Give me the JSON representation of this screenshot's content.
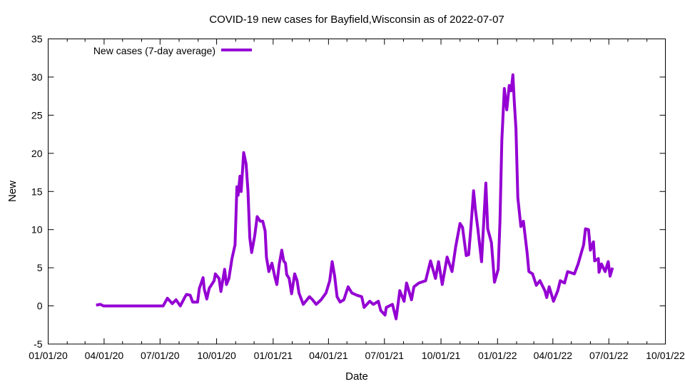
{
  "chart_data": {
    "type": "line",
    "title": "COVID-19 new cases for Bayfield,Wisconsin as of 2022-07-07",
    "xlabel": "Date",
    "ylabel": "New",
    "x_unit": "days since 01/01/20",
    "xlim": [
      0,
      1004
    ],
    "ylim": [
      -5,
      35
    ],
    "yticks": [
      -5,
      0,
      5,
      10,
      15,
      20,
      25,
      30,
      35
    ],
    "xticks": [
      {
        "day": 0,
        "label": "01/01/20"
      },
      {
        "day": 91,
        "label": "04/01/20"
      },
      {
        "day": 182,
        "label": "07/01/20"
      },
      {
        "day": 274,
        "label": "10/01/20"
      },
      {
        "day": 366,
        "label": "01/01/21"
      },
      {
        "day": 456,
        "label": "04/01/21"
      },
      {
        "day": 547,
        "label": "07/01/21"
      },
      {
        "day": 639,
        "label": "10/01/21"
      },
      {
        "day": 731,
        "label": "01/01/22"
      },
      {
        "day": 821,
        "label": "04/01/22"
      },
      {
        "day": 912,
        "label": "07/01/22"
      },
      {
        "day": 1004,
        "label": "10/01/22"
      }
    ],
    "grid": false,
    "legend": {
      "position": "top-left",
      "label": "New cases (7-day average)"
    },
    "color": "#9400d3",
    "series": [
      {
        "name": "New cases (7-day average)",
        "points": [
          [
            78,
            0.1
          ],
          [
            85,
            0.2
          ],
          [
            90,
            0
          ],
          [
            187,
            0
          ],
          [
            194,
            1.0
          ],
          [
            202,
            0.3
          ],
          [
            208,
            0.8
          ],
          [
            215,
            0
          ],
          [
            222,
            1.1
          ],
          [
            225,
            1.5
          ],
          [
            231,
            1.4
          ],
          [
            235,
            0.5
          ],
          [
            243,
            0.5
          ],
          [
            246,
            2.3
          ],
          [
            252,
            3.7
          ],
          [
            254,
            2.2
          ],
          [
            258,
            0.9
          ],
          [
            262,
            2.3
          ],
          [
            270,
            3.3
          ],
          [
            272,
            4.2
          ],
          [
            278,
            3.6
          ],
          [
            281,
            1.9
          ],
          [
            287,
            4.8
          ],
          [
            290,
            2.8
          ],
          [
            294,
            3.6
          ],
          [
            299,
            6.2
          ],
          [
            304,
            8.0
          ],
          [
            307,
            15.6
          ],
          [
            309,
            14.5
          ],
          [
            312,
            17.0
          ],
          [
            314,
            15.0
          ],
          [
            318,
            20.1
          ],
          [
            322,
            18.6
          ],
          [
            325,
            15.1
          ],
          [
            328,
            8.9
          ],
          [
            331,
            7.0
          ],
          [
            336,
            9.2
          ],
          [
            340,
            11.7
          ],
          [
            345,
            11.1
          ],
          [
            349,
            11.1
          ],
          [
            353,
            9.8
          ],
          [
            355,
            6.4
          ],
          [
            359,
            4.5
          ],
          [
            364,
            5.6
          ],
          [
            369,
            3.7
          ],
          [
            372,
            2.8
          ],
          [
            376,
            5.5
          ],
          [
            380,
            7.3
          ],
          [
            383,
            5.9
          ],
          [
            386,
            5.6
          ],
          [
            388,
            4.1
          ],
          [
            392,
            3.6
          ],
          [
            396,
            1.6
          ],
          [
            401,
            4.2
          ],
          [
            405,
            3.3
          ],
          [
            408,
            1.7
          ],
          [
            415,
            0.2
          ],
          [
            421,
            0.8
          ],
          [
            425,
            1.2
          ],
          [
            430,
            0.8
          ],
          [
            436,
            0.2
          ],
          [
            444,
            0.8
          ],
          [
            452,
            1.7
          ],
          [
            458,
            3.3
          ],
          [
            462,
            5.8
          ],
          [
            466,
            3.9
          ],
          [
            470,
            1.2
          ],
          [
            475,
            0.5
          ],
          [
            481,
            0.8
          ],
          [
            488,
            2.5
          ],
          [
            494,
            1.7
          ],
          [
            502,
            1.4
          ],
          [
            510,
            1.2
          ],
          [
            514,
            -0.2
          ],
          [
            523,
            0.6
          ],
          [
            529,
            0.2
          ],
          [
            537,
            0.6
          ],
          [
            541,
            -0.6
          ],
          [
            548,
            -1.2
          ],
          [
            550,
            -0.2
          ],
          [
            560,
            0.2
          ],
          [
            566,
            -1.7
          ],
          [
            572,
            2.0
          ],
          [
            579,
            0.6
          ],
          [
            583,
            3.0
          ],
          [
            591,
            0.8
          ],
          [
            595,
            2.5
          ],
          [
            603,
            3.0
          ],
          [
            614,
            3.3
          ],
          [
            622,
            5.9
          ],
          [
            630,
            3.6
          ],
          [
            635,
            5.8
          ],
          [
            641,
            2.8
          ],
          [
            649,
            6.4
          ],
          [
            657,
            4.5
          ],
          [
            663,
            7.8
          ],
          [
            670,
            10.8
          ],
          [
            674,
            10.3
          ],
          [
            680,
            6.6
          ],
          [
            684,
            6.7
          ],
          [
            688,
            10.6
          ],
          [
            692,
            15.1
          ],
          [
            695,
            12.6
          ],
          [
            699,
            10.1
          ],
          [
            705,
            5.8
          ],
          [
            712,
            16.1
          ],
          [
            715,
            10.1
          ],
          [
            721,
            8.3
          ],
          [
            726,
            3.1
          ],
          [
            732,
            4.8
          ],
          [
            735,
            11.1
          ],
          [
            738,
            21.7
          ],
          [
            742,
            28.5
          ],
          [
            746,
            25.7
          ],
          [
            750,
            28.9
          ],
          [
            753,
            28.2
          ],
          [
            756,
            30.3
          ],
          [
            758,
            27.0
          ],
          [
            761,
            23.2
          ],
          [
            764,
            14.2
          ],
          [
            769,
            10.4
          ],
          [
            773,
            11.1
          ],
          [
            779,
            7.0
          ],
          [
            782,
            4.5
          ],
          [
            788,
            4.2
          ],
          [
            794,
            2.7
          ],
          [
            800,
            3.3
          ],
          [
            808,
            2.0
          ],
          [
            811,
            1.1
          ],
          [
            815,
            2.5
          ],
          [
            822,
            0.6
          ],
          [
            829,
            2.0
          ],
          [
            833,
            3.3
          ],
          [
            840,
            3.0
          ],
          [
            845,
            4.5
          ],
          [
            856,
            4.2
          ],
          [
            862,
            5.5
          ],
          [
            867,
            6.9
          ],
          [
            871,
            8.0
          ],
          [
            874,
            10.1
          ],
          [
            879,
            10.0
          ],
          [
            882,
            7.3
          ],
          [
            887,
            8.4
          ],
          [
            889,
            5.9
          ],
          [
            895,
            6.2
          ],
          [
            896,
            4.4
          ],
          [
            900,
            5.5
          ],
          [
            906,
            4.5
          ],
          [
            911,
            5.8
          ],
          [
            914,
            3.9
          ],
          [
            918,
            5.0
          ]
        ]
      }
    ]
  }
}
